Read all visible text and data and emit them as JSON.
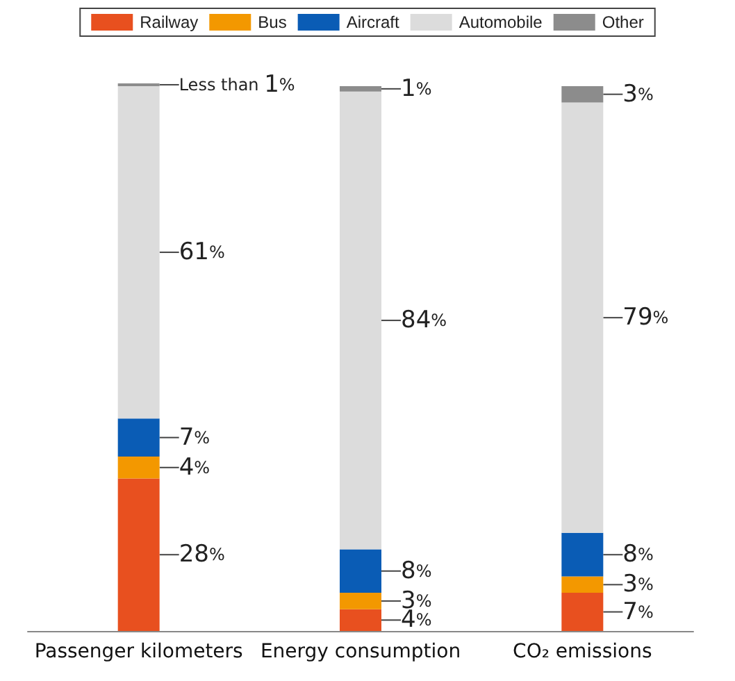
{
  "chart_data": {
    "type": "bar",
    "stacked": true,
    "legend": "top",
    "categories": [
      "Passenger kilometers",
      "Energy consumption",
      "CO₂ emissions"
    ],
    "series": [
      {
        "name": "Railway",
        "color": "#e8501f",
        "values": [
          28,
          4,
          7
        ],
        "value_labels": [
          "28%",
          "4%",
          "7%"
        ]
      },
      {
        "name": "Bus",
        "color": "#f39800",
        "values": [
          4,
          3,
          3
        ],
        "value_labels": [
          "4%",
          "3%",
          "3%"
        ]
      },
      {
        "name": "Aircraft",
        "color": "#0a5cb5",
        "values": [
          7,
          8,
          8
        ],
        "value_labels": [
          "7%",
          "8%",
          "8%"
        ]
      },
      {
        "name": "Automobile",
        "color": "#dcdcdc",
        "values": [
          61,
          84,
          79
        ],
        "value_labels": [
          "61%",
          "84%",
          "79%"
        ]
      },
      {
        "name": "Other",
        "color": "#8c8c8c",
        "values": [
          0.5,
          1,
          3
        ],
        "value_labels": [
          "Less than 1%",
          "1%",
          "3%"
        ]
      }
    ]
  }
}
